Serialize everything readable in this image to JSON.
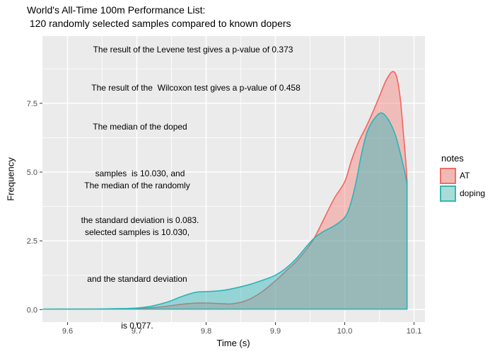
{
  "title": {
    "line1": "World's All-Time 100m Performance List:",
    "line2": " 120 randomly selected samples compared to known dopers"
  },
  "annotations": {
    "levene": "The result of the Levene test gives a p-value of 0.373",
    "wilcoxon": "The result of the  Wilcoxon test gives a p-value of 0.458",
    "doped_block": {
      "line1": "The median of the doped",
      "line2": "samples  is 10.030, and",
      "line3": "the standard deviation is 0.083."
    },
    "random_block": {
      "line1": "The median of the randomly",
      "line2": "selected samples is 10.030,",
      "line3": "and the standard deviation",
      "line4": "is 0.077."
    }
  },
  "axes": {
    "x_title": "Time (s)",
    "y_title": "Frequency"
  },
  "legend": {
    "title": "notes",
    "items": [
      {
        "label": "AT",
        "fill": "#F1B9B5",
        "border": "#EE6E66"
      },
      {
        "label": "doping",
        "fill": "#A9DBD7",
        "border": "#35B7B2"
      }
    ]
  },
  "colors": {
    "panel_bg": "#EBEBEB",
    "gridline": "#FFFFFF",
    "tick_mark": "#333333",
    "tick_label": "#4D4D4D",
    "at_stroke": "#F4645E",
    "at_fill": "rgba(248,118,109,0.40)",
    "doping_stroke": "#2AB4B8",
    "doping_fill": "rgba(47,182,186,0.45)"
  },
  "chart_data": {
    "type": "area",
    "subtype": "density",
    "title": "World's All-Time 100m Performance List: 120 randomly selected samples compared to known dopers",
    "xlabel": "Time (s)",
    "ylabel": "Frequency",
    "legend_title": "notes",
    "legend_position": "right",
    "grid": true,
    "x_ticks": [
      9.6,
      9.7,
      9.8,
      9.9,
      10.0,
      10.1
    ],
    "y_ticks": [
      0.0,
      2.5,
      5.0,
      7.5
    ],
    "xlim": [
      9.5638,
      10.1158
    ],
    "ylim": [
      -0.4556,
      9.943
    ],
    "cutoff_x": 10.09,
    "baseline": 0.015,
    "series": [
      {
        "name": "AT",
        "points": [
          [
            9.565,
            0.015
          ],
          [
            9.62,
            0.015
          ],
          [
            9.66,
            0.025
          ],
          [
            9.69,
            0.04
          ],
          [
            9.715,
            0.06
          ],
          [
            9.74,
            0.11
          ],
          [
            9.76,
            0.18
          ],
          [
            9.78,
            0.23
          ],
          [
            9.8,
            0.24
          ],
          [
            9.82,
            0.22
          ],
          [
            9.838,
            0.21
          ],
          [
            9.858,
            0.33
          ],
          [
            9.878,
            0.6
          ],
          [
            9.898,
            1.0
          ],
          [
            9.915,
            1.4
          ],
          [
            9.93,
            1.75
          ],
          [
            9.945,
            2.2
          ],
          [
            9.956,
            2.6
          ],
          [
            9.97,
            3.3
          ],
          [
            9.985,
            4.05
          ],
          [
            10.0,
            4.65
          ],
          [
            10.01,
            5.45
          ],
          [
            10.02,
            6.1
          ],
          [
            10.03,
            6.6
          ],
          [
            10.04,
            7.15
          ],
          [
            10.05,
            7.75
          ],
          [
            10.06,
            8.35
          ],
          [
            10.069,
            8.65
          ],
          [
            10.075,
            8.45
          ],
          [
            10.08,
            7.7
          ],
          [
            10.084,
            6.6
          ],
          [
            10.088,
            5.4
          ],
          [
            10.09,
            4.65
          ]
        ]
      },
      {
        "name": "doping",
        "points": [
          [
            9.565,
            0.015
          ],
          [
            9.6,
            0.02
          ],
          [
            9.64,
            0.02
          ],
          [
            9.67,
            0.03
          ],
          [
            9.695,
            0.05
          ],
          [
            9.72,
            0.12
          ],
          [
            9.745,
            0.28
          ],
          [
            9.765,
            0.48
          ],
          [
            9.785,
            0.63
          ],
          [
            9.805,
            0.66
          ],
          [
            9.825,
            0.7
          ],
          [
            9.845,
            0.8
          ],
          [
            9.865,
            0.93
          ],
          [
            9.885,
            1.1
          ],
          [
            9.9,
            1.25
          ],
          [
            9.915,
            1.5
          ],
          [
            9.93,
            1.85
          ],
          [
            9.945,
            2.3
          ],
          [
            9.956,
            2.6
          ],
          [
            9.97,
            2.85
          ],
          [
            9.985,
            3.05
          ],
          [
            10.0,
            3.35
          ],
          [
            10.008,
            3.8
          ],
          [
            10.016,
            4.6
          ],
          [
            10.025,
            5.75
          ],
          [
            10.033,
            6.5
          ],
          [
            10.043,
            6.95
          ],
          [
            10.053,
            7.15
          ],
          [
            10.063,
            6.9
          ],
          [
            10.073,
            6.35
          ],
          [
            10.081,
            5.6
          ],
          [
            10.087,
            4.95
          ],
          [
            10.09,
            4.55
          ]
        ]
      }
    ],
    "stats": {
      "levene_p": 0.373,
      "wilcoxon_p": 0.458,
      "doped_median": 10.03,
      "doped_sd": 0.083,
      "random_median": 10.03,
      "random_sd": 0.077
    }
  }
}
